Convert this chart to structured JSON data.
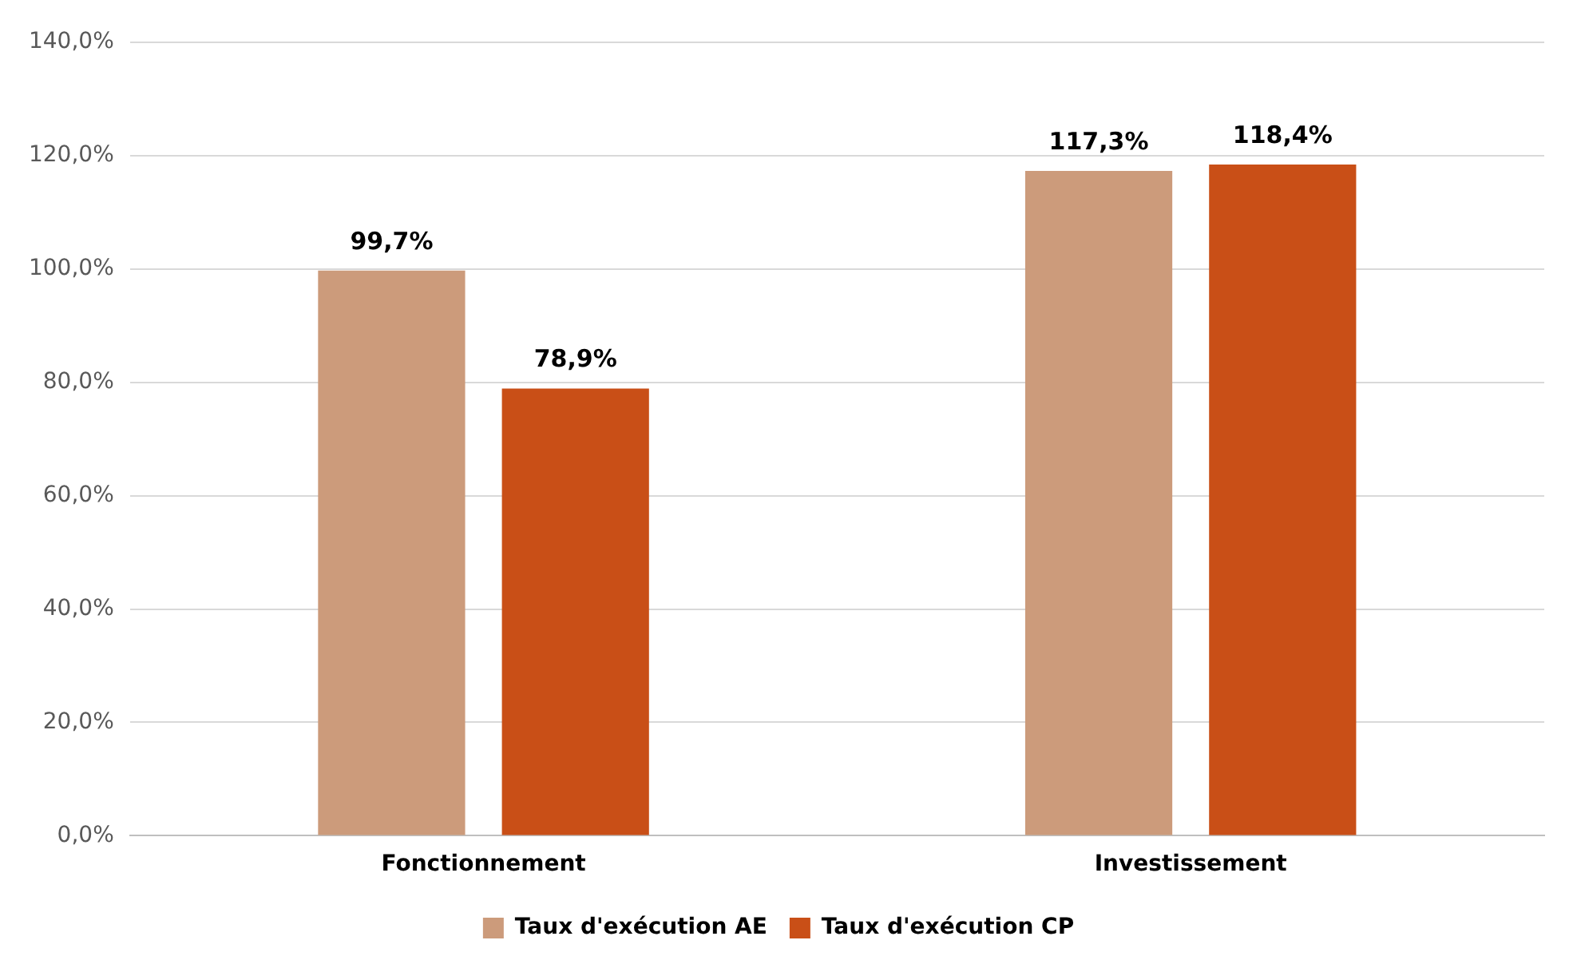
{
  "chart_data": {
    "type": "bar",
    "categories": [
      "Fonctionnement",
      "Investissement"
    ],
    "series": [
      {
        "name": "Taux d'exécution AE",
        "color": "#cc9b7b",
        "values": [
          99.7,
          117.3
        ],
        "value_labels": [
          "99,7%",
          "117,3%"
        ]
      },
      {
        "name": "Taux d'exécution CP",
        "color": "#c94f17",
        "values": [
          78.9,
          118.4
        ],
        "value_labels": [
          "78,9%",
          "118,4%"
        ]
      }
    ],
    "ylim": [
      0,
      140
    ],
    "yticks": [
      {
        "value": 0,
        "label": "0,0%"
      },
      {
        "value": 20,
        "label": "20,0%"
      },
      {
        "value": 40,
        "label": "40,0%"
      },
      {
        "value": 60,
        "label": "60,0%"
      },
      {
        "value": 80,
        "label": "80,0%"
      },
      {
        "value": 100,
        "label": "100,0%"
      },
      {
        "value": 120,
        "label": "120,0%"
      },
      {
        "value": 140,
        "label": "140,0%"
      }
    ],
    "grid": "y",
    "legend": "bottom"
  }
}
